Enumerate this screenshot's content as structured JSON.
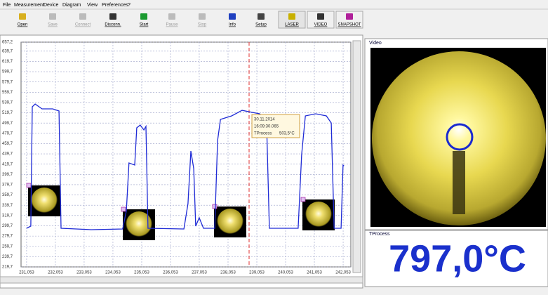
{
  "menu": [
    "File",
    "Measurement",
    "Device",
    "Diagram",
    "View",
    "Preferences",
    "?"
  ],
  "toolbar": [
    {
      "label": "Open",
      "enabled": true
    },
    {
      "label": "Save",
      "enabled": false
    },
    {
      "label": "Connect",
      "enabled": false
    },
    {
      "label": "Disconn.",
      "enabled": true
    },
    {
      "label": "Start",
      "enabled": true
    },
    {
      "label": "Pause",
      "enabled": false
    },
    {
      "label": "Stop",
      "enabled": false
    },
    {
      "label": "Info",
      "enabled": true
    },
    {
      "label": "Setup",
      "enabled": true
    },
    {
      "label": "LASER",
      "enabled": true
    },
    {
      "label": "VIDEO",
      "enabled": true
    },
    {
      "label": "SNAPSHOT",
      "enabled": true
    }
  ],
  "chart": {
    "xlim": [
      230.86,
      242.32
    ],
    "ylim": [
      219.7,
      657.2
    ],
    "xticks": [
      {
        "value": 231.053,
        "label": "231,053"
      },
      {
        "value": 232.053,
        "label": "232,053"
      },
      {
        "value": 233.053,
        "label": "233,053"
      },
      {
        "value": 234.053,
        "label": "234,053"
      },
      {
        "value": 235.053,
        "label": "235,053"
      },
      {
        "value": 236.053,
        "label": "236,053"
      },
      {
        "value": 237.053,
        "label": "237,053"
      },
      {
        "value": 238.053,
        "label": "238,053"
      },
      {
        "value": 239.053,
        "label": "239,053"
      },
      {
        "value": 240.053,
        "label": "240,053"
      },
      {
        "value": 241.053,
        "label": "241,053"
      },
      {
        "value": 242.053,
        "label": "242,053"
      }
    ],
    "yticks": [
      {
        "value": 219.7,
        "label": "219,7"
      },
      {
        "value": 239.7,
        "label": "239,7"
      },
      {
        "value": 259.7,
        "label": "259,7"
      },
      {
        "value": 279.7,
        "label": "279,7"
      },
      {
        "value": 299.7,
        "label": "299,7"
      },
      {
        "value": 319.7,
        "label": "319,7"
      },
      {
        "value": 339.7,
        "label": "339,7"
      },
      {
        "value": 359.7,
        "label": "359,7"
      },
      {
        "value": 379.7,
        "label": "379,7"
      },
      {
        "value": 399.7,
        "label": "399,7"
      },
      {
        "value": 419.7,
        "label": "419,7"
      },
      {
        "value": 439.7,
        "label": "439,7"
      },
      {
        "value": 459.7,
        "label": "459,7"
      },
      {
        "value": 479.7,
        "label": "479,7"
      },
      {
        "value": 499.7,
        "label": "499,7"
      },
      {
        "value": 519.7,
        "label": "519,7"
      },
      {
        "value": 539.7,
        "label": "539,7"
      },
      {
        "value": 559.7,
        "label": "559,7"
      },
      {
        "value": 579.7,
        "label": "579,7"
      },
      {
        "value": 599.7,
        "label": "599,7"
      },
      {
        "value": 619.7,
        "label": "619,7"
      },
      {
        "value": 639.7,
        "label": "639,7"
      },
      {
        "value": 657.2,
        "label": "657,2"
      }
    ],
    "grid": true,
    "series": {
      "color": "#1f2bd6",
      "x": [
        231.05,
        231.2,
        231.25,
        231.35,
        231.59,
        231.96,
        232.18,
        232.25,
        233.3,
        234.39,
        234.52,
        234.61,
        234.81,
        234.88,
        235.0,
        235.13,
        235.2,
        235.27,
        236.52,
        236.66,
        236.76,
        236.86,
        236.93,
        237.05,
        237.2,
        237.59,
        237.69,
        237.79,
        238.18,
        238.54,
        238.91,
        239.15,
        239.39,
        239.49,
        240.49,
        240.61,
        240.74,
        241.1,
        241.47,
        241.64,
        241.74,
        241.98,
        242.05,
        242.08
      ],
      "values": [
        294.9,
        299.0,
        531.4,
        536.8,
        527.3,
        527.3,
        523.2,
        294.9,
        292.1,
        293.5,
        329.1,
        422.0,
        417.9,
        490.4,
        495.8,
        486.3,
        493.1,
        294.9,
        293.5,
        342.7,
        445.3,
        411.1,
        299.0,
        315.4,
        294.9,
        294.9,
        465.8,
        506.8,
        513.6,
        524.5,
        520.4,
        517.7,
        506.8,
        294.9,
        294.9,
        438.4,
        513.6,
        517.7,
        513.6,
        499.9,
        294.9,
        294.9,
        417.9,
        416.5
      ]
    },
    "tooltip": {
      "date": "30.11.2014",
      "time": "16:09:30.065",
      "label": "TProcess",
      "value": "503,5°C"
    }
  },
  "video": {
    "title": "Video"
  },
  "readout": {
    "title": "TProcess",
    "value": "797,0°C"
  }
}
